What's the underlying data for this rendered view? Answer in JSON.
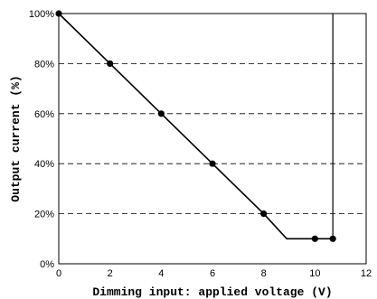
{
  "chart_data": {
    "type": "line",
    "title": "",
    "xlabel": "Dimming input: applied voltage (V)",
    "ylabel": "Output current (%)",
    "xlim": [
      0,
      12
    ],
    "ylim": [
      0,
      100
    ],
    "x_ticks": [
      0,
      2,
      4,
      6,
      8,
      10,
      12
    ],
    "y_ticks": [
      0,
      20,
      40,
      60,
      80,
      100
    ],
    "x_tick_labels": [
      "0",
      "2",
      "4",
      "6",
      "8",
      "10",
      "12"
    ],
    "y_tick_labels": [
      "0%",
      "20%",
      "40%",
      "60%",
      "80%",
      "100%"
    ],
    "grid": "horizontal dashed",
    "series": [
      {
        "x": [
          0,
          2,
          4,
          6,
          8,
          8.9,
          10,
          10.7
        ],
        "y": [
          100,
          80,
          60,
          40,
          20,
          10,
          10,
          10
        ],
        "markers_x": [
          0,
          2,
          4,
          6,
          8,
          10,
          10.7
        ],
        "markers_y": [
          100,
          80,
          60,
          40,
          20,
          10,
          10
        ]
      }
    ],
    "vertical_line_x": 10.7,
    "color": "#000000"
  }
}
